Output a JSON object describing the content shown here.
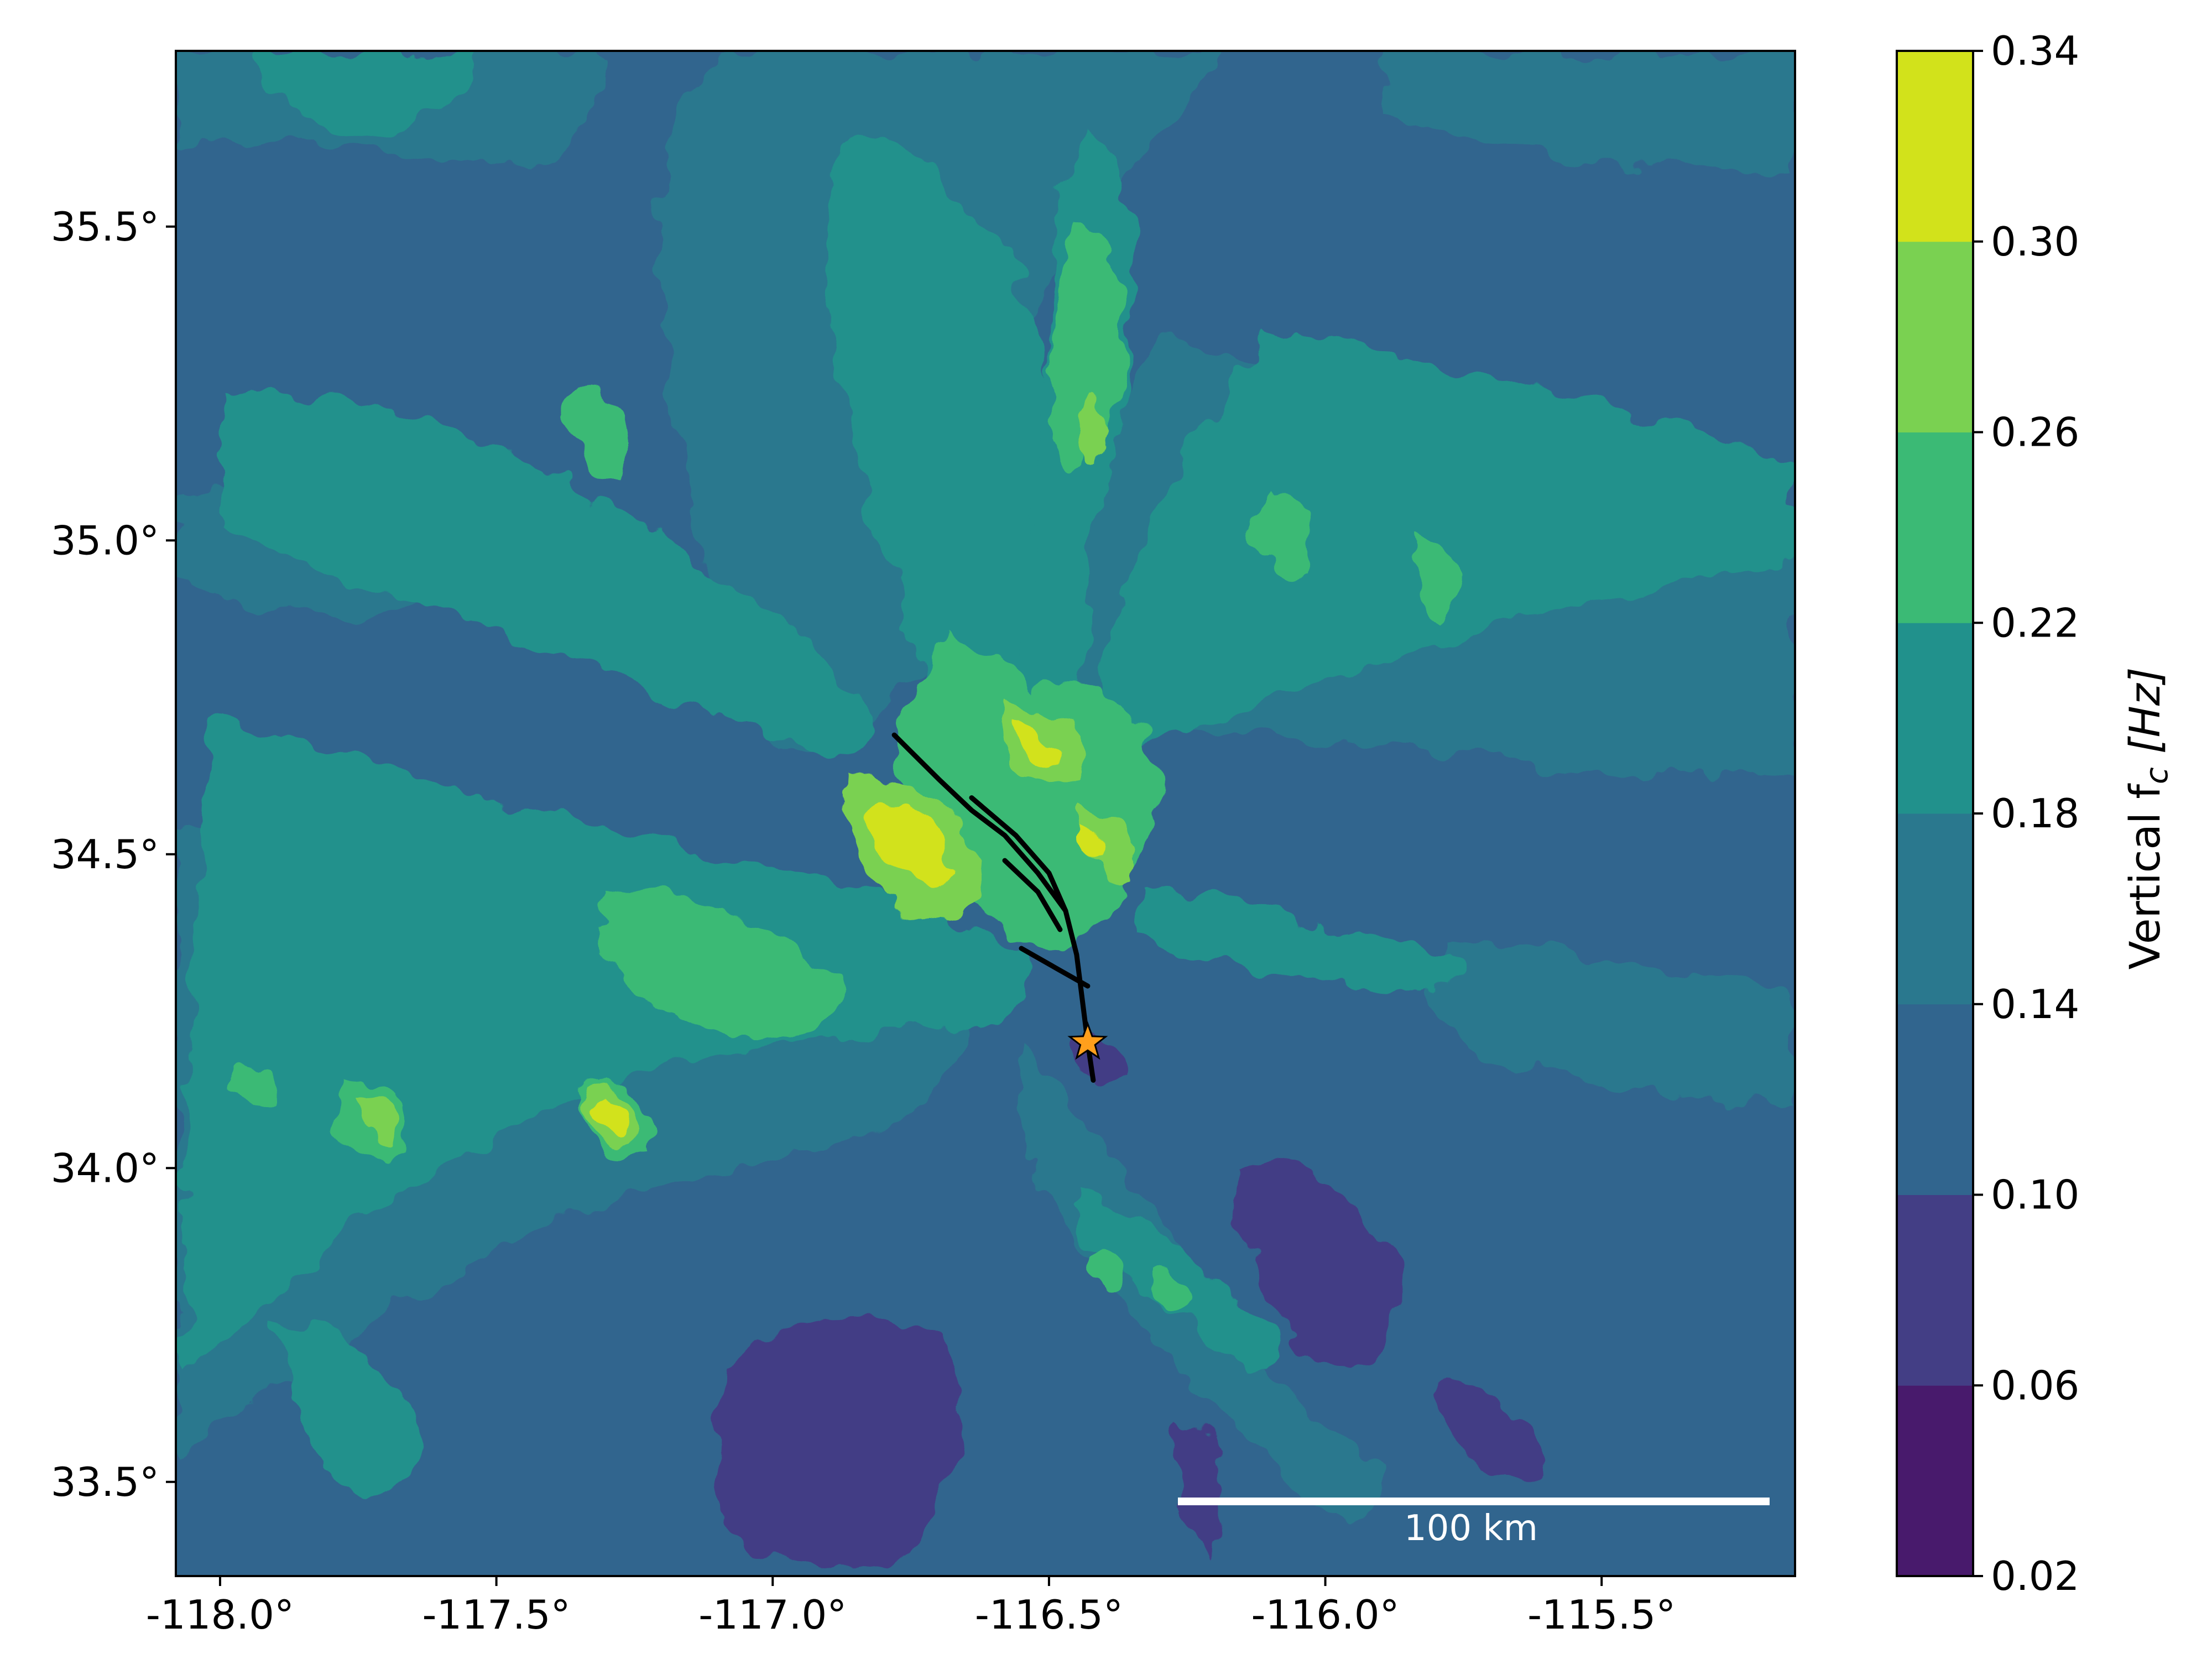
{
  "map": {
    "type": "filled-contour-map",
    "x_ticks": [
      "-118.0°",
      "-117.5°",
      "-117.0°",
      "-116.5°",
      "-116.0°",
      "-115.5°"
    ],
    "x_tick_values": [
      -118.0,
      -117.5,
      -117.0,
      -116.5,
      -116.0,
      -115.5
    ],
    "y_ticks": [
      "35.5°",
      "35.0°",
      "34.5°",
      "34.0°",
      "33.5°"
    ],
    "y_tick_values": [
      35.5,
      35.0,
      34.5,
      34.0,
      33.5
    ],
    "xlim": [
      -118.08,
      -115.15
    ],
    "ylim": [
      33.35,
      35.78
    ],
    "epicenter": {
      "lon": -116.43,
      "lat": 34.2,
      "marker": "star",
      "color": "#ff9f1c"
    },
    "fault_traces": [
      [
        [
          -116.78,
          34.69
        ],
        [
          -116.7,
          34.62
        ],
        [
          -116.64,
          34.57
        ],
        [
          -116.58,
          34.53
        ],
        [
          -116.52,
          34.47
        ],
        [
          -116.47,
          34.41
        ],
        [
          -116.45,
          34.34
        ],
        [
          -116.44,
          34.27
        ],
        [
          -116.43,
          34.2
        ],
        [
          -116.42,
          34.14
        ]
      ],
      [
        [
          -116.64,
          34.59
        ],
        [
          -116.56,
          34.53
        ],
        [
          -116.5,
          34.47
        ],
        [
          -116.47,
          34.41
        ]
      ],
      [
        [
          -116.58,
          34.49
        ],
        [
          -116.52,
          34.44
        ],
        [
          -116.48,
          34.38
        ]
      ],
      [
        [
          -116.55,
          34.35
        ],
        [
          -116.49,
          34.32
        ],
        [
          -116.43,
          34.29
        ]
      ]
    ],
    "scale_bar": {
      "label": "100 km",
      "color": "#ffffff"
    }
  },
  "colorbar": {
    "title": "Vertical f",
    "title_subscript": "c",
    "title_unit": "[Hz]",
    "ticks": [
      "0.02",
      "0.06",
      "0.10",
      "0.14",
      "0.18",
      "0.22",
      "0.26",
      "0.30",
      "0.34"
    ],
    "levels": [
      0.02,
      0.06,
      0.1,
      0.14,
      0.18,
      0.22,
      0.26,
      0.3,
      0.34
    ],
    "colors": [
      "#481a6c",
      "#433e85",
      "#31658e",
      "#2a788e",
      "#21918c",
      "#3bba75",
      "#7ad151",
      "#d2e21b"
    ]
  }
}
